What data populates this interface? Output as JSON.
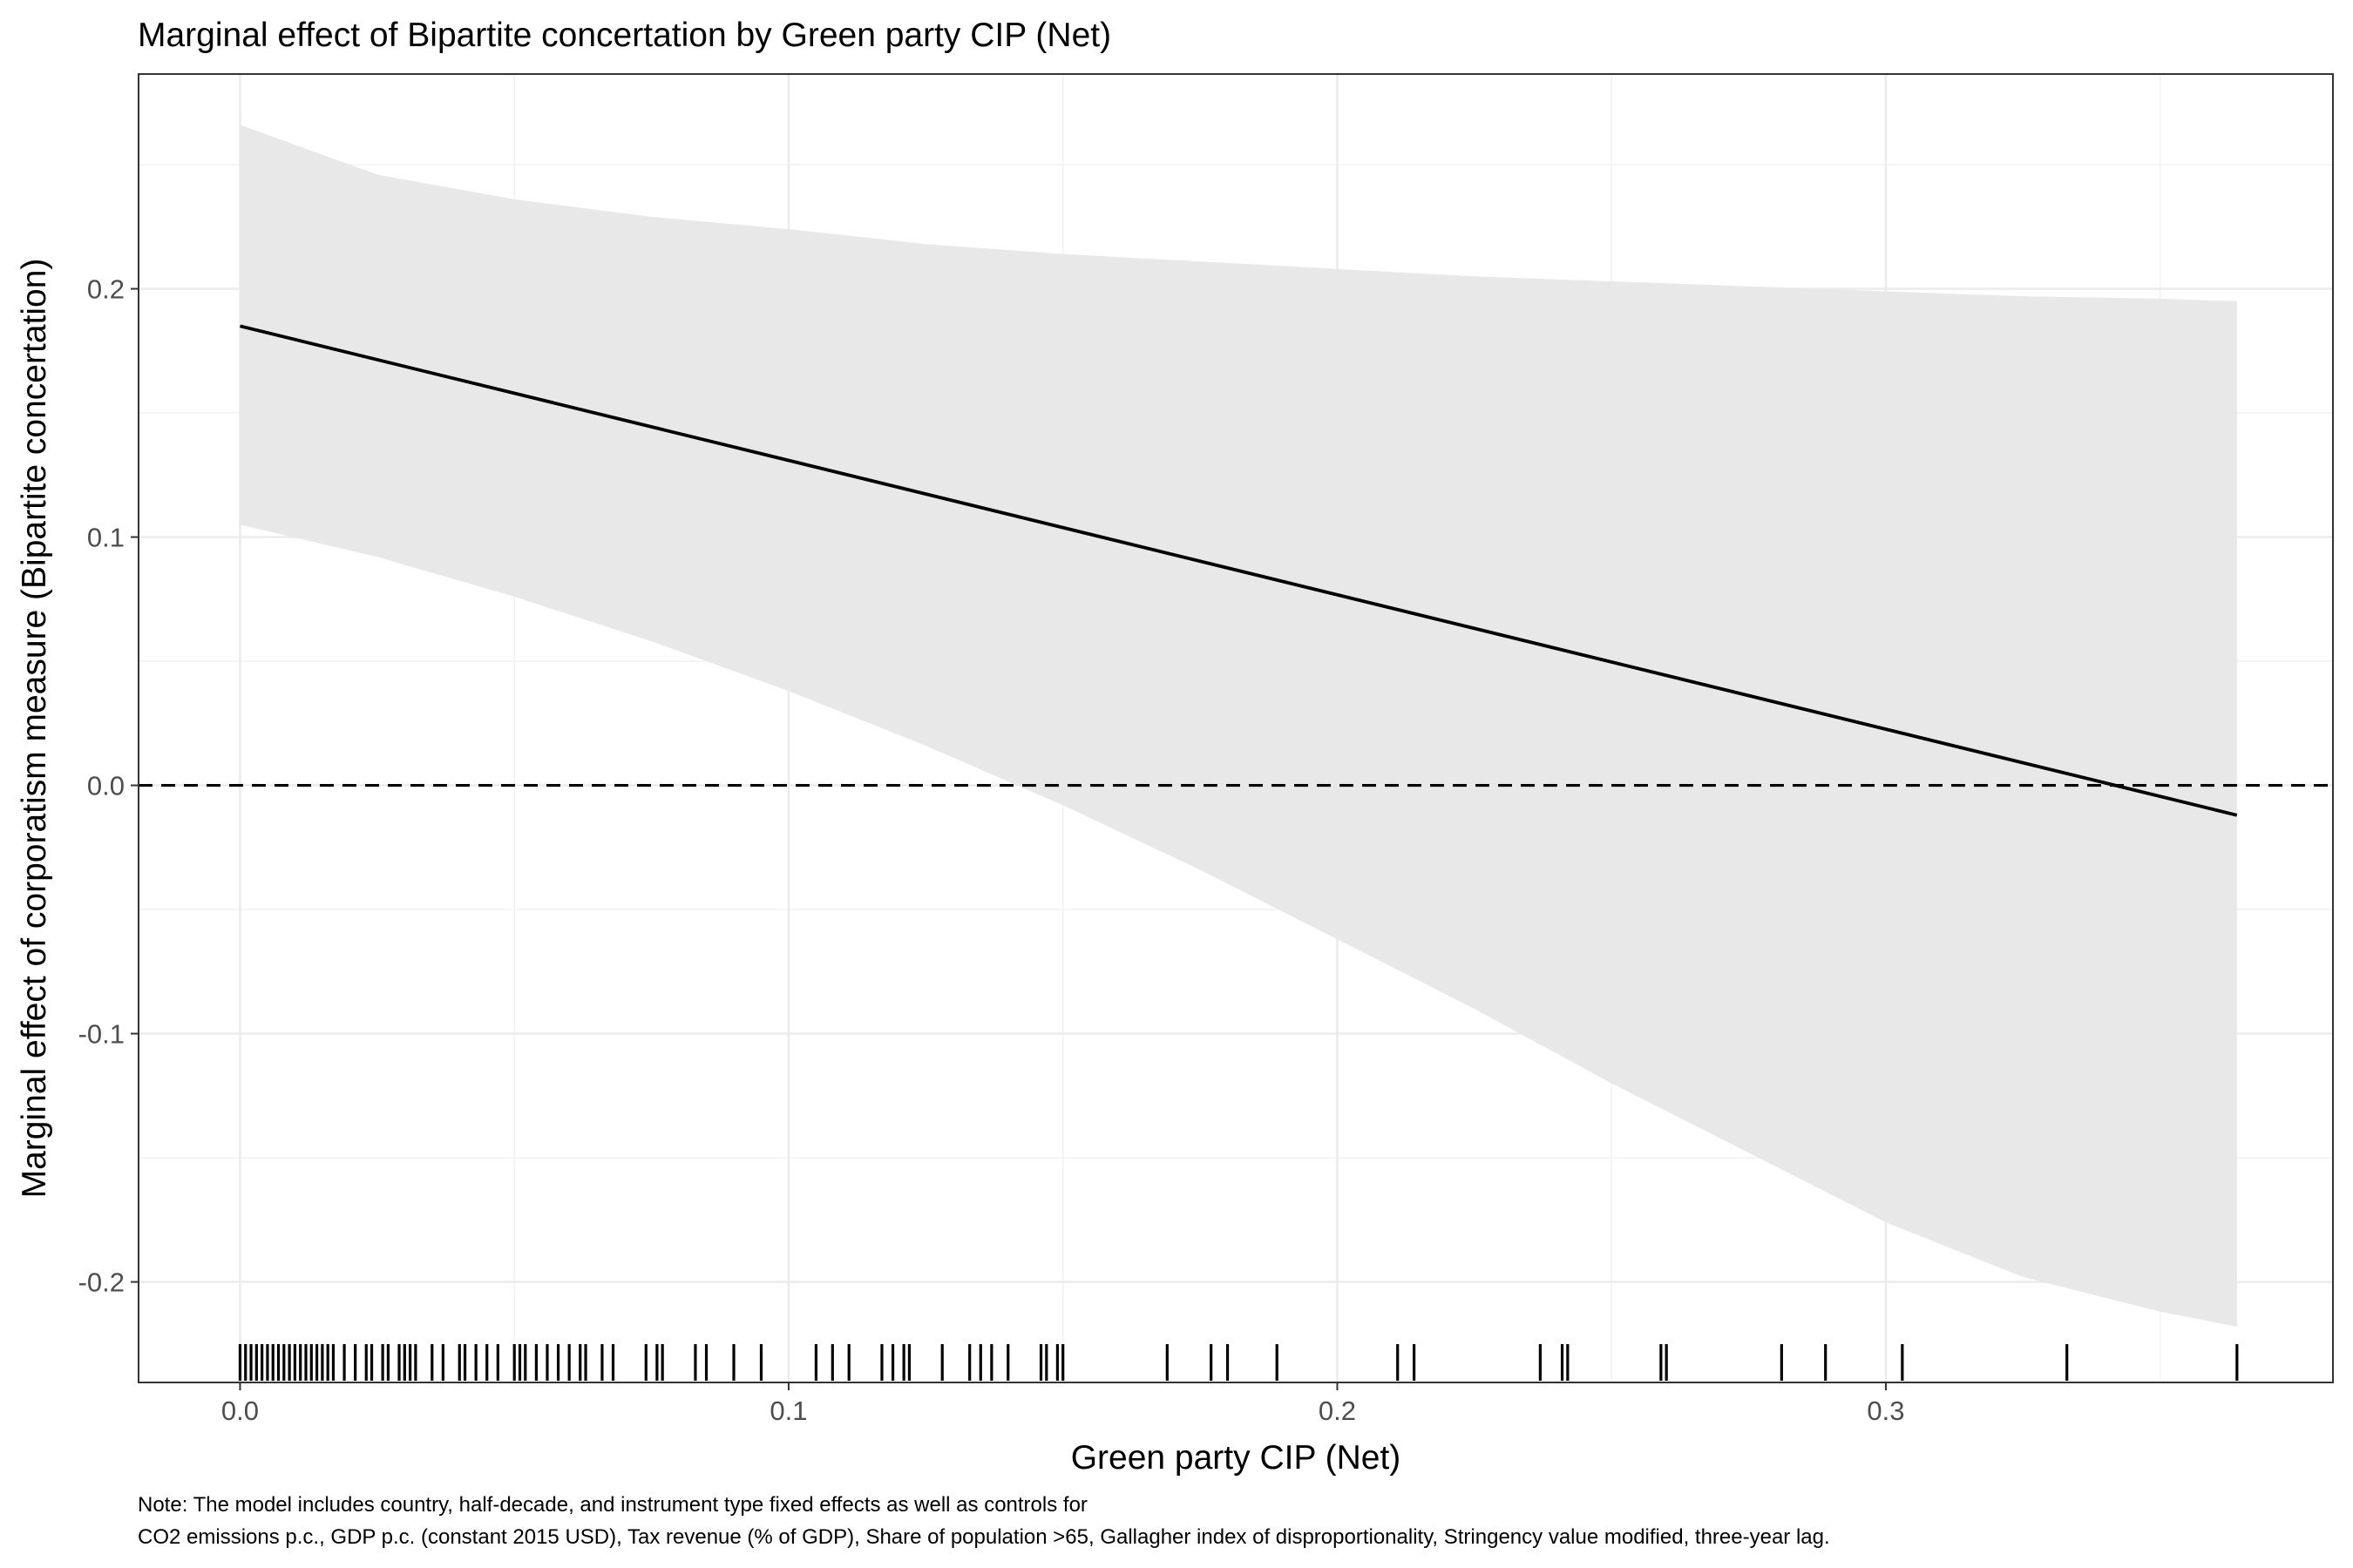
{
  "chart_data": {
    "type": "line",
    "title": "Marginal effect of Bipartite concertation by Green party CIP (Net)",
    "xlabel": "Green party CIP (Net)",
    "ylabel": "Marginal effect of corporatism measure (Bipartite concertation)",
    "xlim": [
      -0.0185,
      0.3815
    ],
    "ylim": [
      -0.2405,
      0.2865
    ],
    "xticks": [
      0.0,
      0.1,
      0.2,
      0.3
    ],
    "xtick_labels": [
      "0.0",
      "0.1",
      "0.2",
      "0.3"
    ],
    "yticks": [
      -0.2,
      -0.1,
      0.0,
      0.1,
      0.2
    ],
    "ytick_labels": [
      "-0.2",
      "-0.1",
      "0.0",
      "0.1",
      "0.2"
    ],
    "x_minor_gridlines": [
      0.05,
      0.15,
      0.25,
      0.35
    ],
    "y_minor_gridlines": [
      -0.15,
      -0.05,
      0.05,
      0.15,
      0.25
    ],
    "grid": true,
    "theme": "bw",
    "series": [
      {
        "role": "marginal-effect",
        "x": [
          0.0,
          0.364
        ],
        "y": [
          0.185,
          -0.012
        ],
        "color": "#000000"
      }
    ],
    "confidence_band": {
      "color": "#e8e8e8",
      "x": [
        0.0,
        0.025,
        0.05,
        0.075,
        0.1,
        0.125,
        0.15,
        0.175,
        0.2,
        0.225,
        0.25,
        0.275,
        0.3,
        0.325,
        0.35,
        0.364
      ],
      "upper": [
        0.266,
        0.246,
        0.236,
        0.229,
        0.224,
        0.218,
        0.214,
        0.211,
        0.208,
        0.205,
        0.203,
        0.201,
        0.199,
        0.197,
        0.196,
        0.195
      ],
      "lower": [
        0.105,
        0.092,
        0.076,
        0.058,
        0.038,
        0.016,
        -0.008,
        -0.034,
        -0.062,
        -0.09,
        -0.12,
        -0.148,
        -0.176,
        -0.198,
        -0.212,
        -0.218
      ]
    },
    "reference_line": {
      "y": 0.0,
      "style": "dashed",
      "color": "#000000"
    },
    "rug": {
      "color": "#000000",
      "x": [
        0.0,
        0.001,
        0.002,
        0.003,
        0.004,
        0.005,
        0.006,
        0.007,
        0.008,
        0.009,
        0.01,
        0.011,
        0.012,
        0.013,
        0.014,
        0.015,
        0.016,
        0.017,
        0.019,
        0.021,
        0.023,
        0.024,
        0.026,
        0.027,
        0.029,
        0.03,
        0.031,
        0.032,
        0.035,
        0.037,
        0.04,
        0.041,
        0.043,
        0.045,
        0.047,
        0.05,
        0.051,
        0.052,
        0.054,
        0.056,
        0.058,
        0.06,
        0.062,
        0.063,
        0.066,
        0.068,
        0.074,
        0.076,
        0.077,
        0.083,
        0.085,
        0.09,
        0.095,
        0.105,
        0.108,
        0.111,
        0.117,
        0.119,
        0.121,
        0.122,
        0.128,
        0.133,
        0.135,
        0.137,
        0.14,
        0.146,
        0.147,
        0.149,
        0.15,
        0.169,
        0.177,
        0.18,
        0.189,
        0.211,
        0.214,
        0.237,
        0.241,
        0.242,
        0.259,
        0.26,
        0.281,
        0.289,
        0.303,
        0.333,
        0.364
      ]
    }
  },
  "note": {
    "line1": "Note: The model includes country, half-decade, and instrument type fixed effects as well as controls for",
    "line2": "CO2 emissions p.c., GDP p.c. (constant 2015 USD), Tax revenue (% of GDP), Share of population >65, Gallagher index of disproportionality, Stringency value modified, three-year lag."
  }
}
